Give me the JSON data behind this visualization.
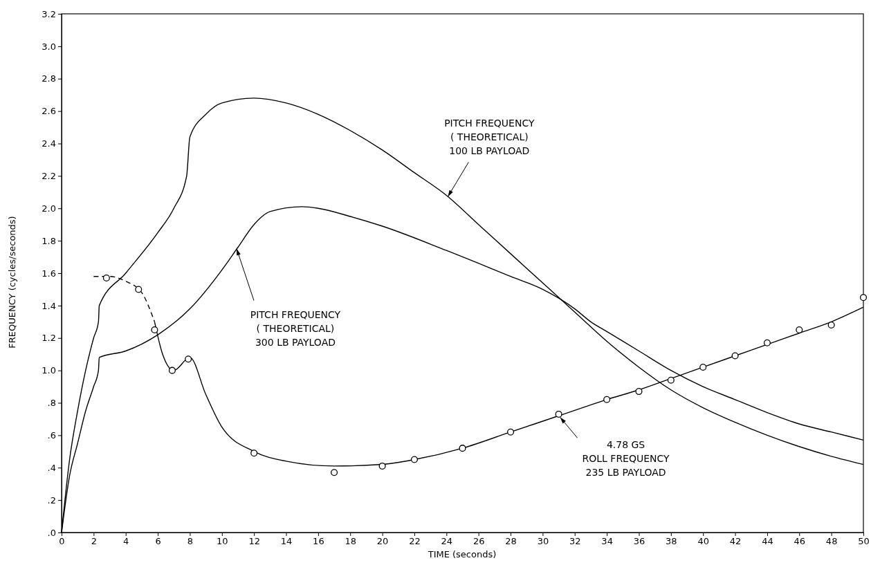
{
  "chart_data": {
    "type": "line",
    "xlabel": "TIME (seconds)",
    "ylabel": "FREQUENCY (cycles/seconds)",
    "xlim": [
      0,
      50
    ],
    "ylim": [
      0,
      3.2
    ],
    "xticks": [
      0,
      2,
      4,
      6,
      8,
      10,
      12,
      14,
      16,
      18,
      20,
      22,
      24,
      26,
      28,
      30,
      32,
      34,
      36,
      38,
      40,
      42,
      44,
      46,
      48,
      50
    ],
    "yticks": [
      {
        "value": 0,
        "label": ".0"
      },
      {
        "value": 0.2,
        "label": ".2"
      },
      {
        "value": 0.4,
        "label": ".4"
      },
      {
        "value": 0.6,
        "label": ".6"
      },
      {
        "value": 0.8,
        "label": ".8"
      },
      {
        "value": 1,
        "label": "1.0"
      },
      {
        "value": 1.2,
        "label": "1.2"
      },
      {
        "value": 1.4,
        "label": "1.4"
      },
      {
        "value": 1.6,
        "label": "1.6"
      },
      {
        "value": 1.8,
        "label": "1.8"
      },
      {
        "value": 2,
        "label": "2.0"
      },
      {
        "value": 2.2,
        "label": "2.2"
      },
      {
        "value": 2.4,
        "label": "2.4"
      },
      {
        "value": 2.6,
        "label": "2.6"
      },
      {
        "value": 2.8,
        "label": "2.8"
      },
      {
        "value": 3,
        "label": "3.0"
      },
      {
        "value": 3.2,
        "label": "3.2"
      }
    ],
    "grid": false,
    "marker": "none",
    "line_style": "solid",
    "series": [
      {
        "color": "#000000",
        "x": [
          0,
          0.5,
          1,
          1.5,
          2,
          2.3,
          2.35,
          4,
          6,
          7,
          7.8,
          8,
          9,
          10,
          12,
          14,
          16,
          18,
          20,
          22,
          24,
          26,
          28,
          30,
          32,
          34,
          36,
          38,
          40,
          42,
          44,
          46,
          48,
          50
        ],
        "values": [
          0,
          0.45,
          0.75,
          1.0,
          1.2,
          1.3,
          1.4,
          1.6,
          1.85,
          2.0,
          2.2,
          2.44,
          2.58,
          2.65,
          2.68,
          2.65,
          2.58,
          2.48,
          2.36,
          2.22,
          2.08,
          1.9,
          1.72,
          1.54,
          1.36,
          1.18,
          1.02,
          0.88,
          0.77,
          0.68,
          0.6,
          0.53,
          0.47,
          0.42
        ]
      },
      {
        "color": "#000000",
        "x": [
          0,
          0.5,
          1,
          1.5,
          2,
          2.3,
          2.35,
          4,
          6,
          8,
          10,
          11,
          12,
          13,
          15,
          16,
          18,
          20,
          24,
          28,
          30,
          32,
          33,
          34,
          36,
          38,
          40,
          42,
          44,
          46,
          48,
          50
        ],
        "values": [
          0,
          0.35,
          0.55,
          0.75,
          0.9,
          1.0,
          1.08,
          1.12,
          1.22,
          1.38,
          1.62,
          1.76,
          1.9,
          1.98,
          2.01,
          2.0,
          1.95,
          1.89,
          1.74,
          1.58,
          1.5,
          1.38,
          1.3,
          1.24,
          1.12,
          1.0,
          0.9,
          0.82,
          0.74,
          0.67,
          0.62,
          0.57
        ]
      },
      {
        "color": "#000000",
        "line_style": "dashed",
        "x": [
          2,
          3,
          4,
          5,
          5.8
        ],
        "values": [
          1.58,
          1.58,
          1.55,
          1.48,
          1.3
        ]
      },
      {
        "color": "#000000",
        "x": [
          5.8,
          6.3,
          7,
          8,
          9,
          10,
          12,
          14,
          17,
          20,
          22,
          25,
          28,
          31,
          34,
          36,
          38,
          40,
          42,
          44,
          46,
          48,
          50
        ],
        "values": [
          1.3,
          1.1,
          1.0,
          1.08,
          0.85,
          0.65,
          0.5,
          0.44,
          0.41,
          0.42,
          0.45,
          0.52,
          0.62,
          0.72,
          0.82,
          0.88,
          0.95,
          1.02,
          1.09,
          1.16,
          1.23,
          1.3,
          1.39
        ]
      },
      {
        "type": "scatter",
        "marker": "circle",
        "color": "#000000",
        "x": [
          2.8,
          4.8,
          5.8,
          6.9,
          7.9,
          12,
          17,
          20,
          22,
          25,
          28,
          31,
          34,
          36,
          38,
          40,
          42,
          44,
          46,
          48,
          50
        ],
        "values": [
          1.57,
          1.5,
          1.25,
          1.0,
          1.07,
          0.49,
          0.37,
          0.41,
          0.45,
          0.52,
          0.62,
          0.73,
          0.82,
          0.87,
          0.94,
          1.02,
          1.09,
          1.17,
          1.25,
          1.28,
          1.45
        ]
      }
    ],
    "annotations": [
      {
        "text": "PITCH FREQUENCY\n( THEORETICAL)\n100 LB PAYLOAD",
        "x": 24,
        "y": 2.08
      },
      {
        "text": "PITCH FREQUENCY\n( THEORETICAL)\n300 LB PAYLOAD",
        "x": 11,
        "y": 1.76
      },
      {
        "text": "4.78 GS\nROLL FREQUENCY\n235 LB PAYLOAD",
        "x": 31,
        "y": 0.72
      }
    ]
  }
}
